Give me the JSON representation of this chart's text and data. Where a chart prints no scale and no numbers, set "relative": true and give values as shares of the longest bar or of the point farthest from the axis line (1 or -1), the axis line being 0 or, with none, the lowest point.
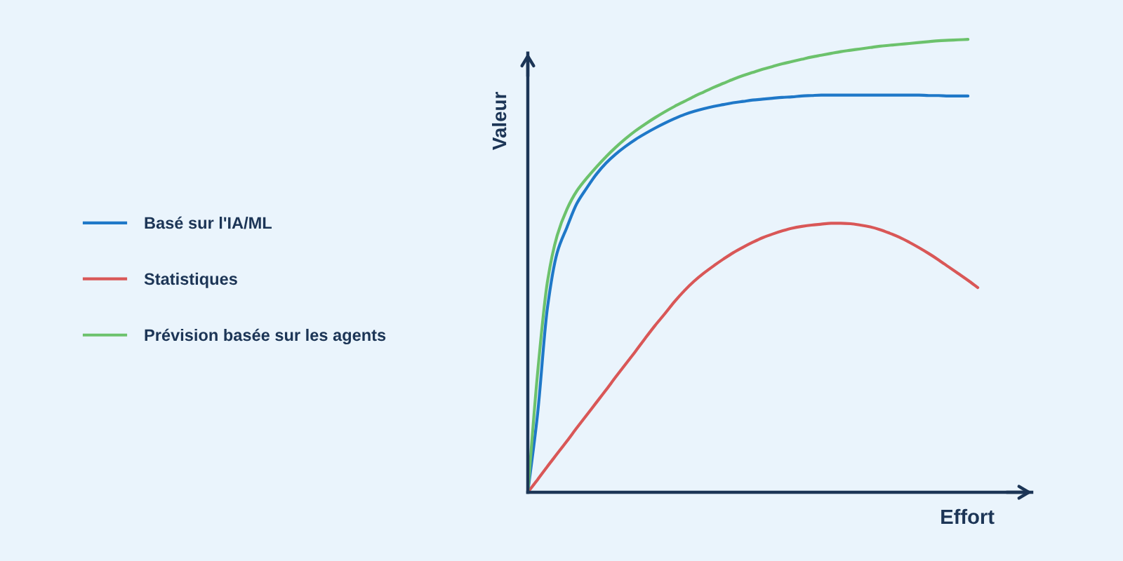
{
  "chart_data": {
    "type": "line",
    "relative": true,
    "xlabel": "Effort",
    "ylabel": "Valeur",
    "legend": "left",
    "line_style": "solid",
    "categories": [
      null,
      null,
      null,
      null,
      null,
      null,
      null,
      null,
      null,
      null,
      null,
      null,
      null,
      null,
      null,
      null,
      null,
      null,
      null,
      null,
      null,
      null,
      null,
      null,
      null,
      null,
      null,
      null,
      null,
      null,
      null,
      null,
      null,
      null,
      null,
      null,
      null,
      null,
      null,
      null,
      null,
      null,
      null,
      null,
      null,
      null,
      null
    ],
    "series": [
      {
        "name": "Basé sur l'IA/ML",
        "color": "#1f78c8",
        "values": [
          0,
          0.173,
          0.406,
          0.529,
          0.585,
          0.637,
          0.671,
          0.702,
          0.727,
          0.747,
          0.764,
          0.779,
          0.792,
          0.804,
          0.815,
          0.825,
          0.834,
          0.841,
          0.847,
          0.852,
          0.856,
          0.86,
          0.863,
          0.866,
          0.868,
          0.87,
          0.872,
          0.873,
          0.875,
          0.876,
          0.877,
          0.877,
          0.877,
          0.877,
          0.877,
          0.877,
          0.877,
          0.877,
          0.877,
          0.877,
          0.877,
          0.876,
          0.876,
          0.875,
          0.875,
          0.875,
          null
        ]
      },
      {
        "name": "Statistiques",
        "color": "#d95757",
        "values": [
          0,
          0.028,
          0.057,
          0.085,
          0.113,
          0.142,
          0.17,
          0.198,
          0.226,
          0.255,
          0.283,
          0.311,
          0.34,
          0.368,
          0.394,
          0.421,
          0.445,
          0.466,
          0.484,
          0.5,
          0.515,
          0.529,
          0.541,
          0.552,
          0.562,
          0.57,
          0.577,
          0.583,
          0.587,
          0.59,
          0.592,
          0.594,
          0.594,
          0.593,
          0.59,
          0.586,
          0.58,
          0.572,
          0.563,
          0.552,
          0.54,
          0.527,
          0.513,
          0.498,
          0.483,
          0.468,
          0.452
        ]
      },
      {
        "name": "Prévision basée sur les agents",
        "color": "#6cc26c",
        "values": [
          0,
          0.263,
          0.464,
          0.567,
          0.625,
          0.665,
          0.693,
          0.718,
          0.741,
          0.762,
          0.781,
          0.798,
          0.813,
          0.827,
          0.84,
          0.852,
          0.863,
          0.874,
          0.884,
          0.894,
          0.903,
          0.912,
          0.92,
          0.927,
          0.934,
          0.94,
          0.946,
          0.951,
          0.956,
          0.961,
          0.965,
          0.969,
          0.973,
          0.976,
          0.979,
          0.982,
          0.985,
          0.987,
          0.989,
          0.991,
          0.993,
          0.995,
          0.997,
          0.998,
          0.999,
          1,
          null
        ]
      }
    ]
  }
}
